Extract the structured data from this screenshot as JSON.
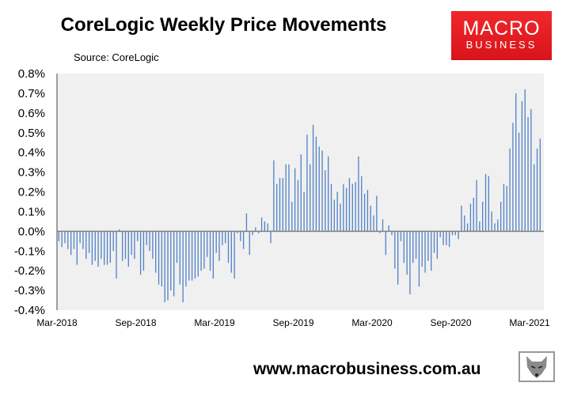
{
  "header": {
    "title": "CoreLogic Weekly Price Movements",
    "source": "Source: CoreLogic"
  },
  "logo": {
    "line1": "MACRO",
    "line2": "BUSINESS",
    "color": "#e81f25"
  },
  "footer": {
    "url": "www.macrobusiness.com.au",
    "emblem": "wolf-head-icon"
  },
  "chart_data": {
    "type": "bar",
    "title": "CoreLogic Weekly Price Movements",
    "xlabel": "",
    "ylabel": "",
    "ylim": [
      -0.4,
      0.8
    ],
    "y_unit": "%",
    "y_ticks": [
      "0.8%",
      "0.7%",
      "0.6%",
      "0.5%",
      "0.4%",
      "0.3%",
      "0.2%",
      "0.1%",
      "0.0%",
      "-0.1%",
      "-0.2%",
      "-0.3%",
      "-0.4%"
    ],
    "x_ticks": [
      "Mar-2018",
      "Sep-2018",
      "Mar-2019",
      "Sep-2019",
      "Mar-2020",
      "Sep-2020",
      "Mar-2021"
    ],
    "x_range": [
      "Mar-2018",
      "Mar-2021"
    ],
    "frequency": "weekly",
    "grid": false,
    "bar_color": "#4f81c7",
    "plot_background": "#f0f0f0",
    "values": [
      -0.05,
      -0.08,
      -0.06,
      -0.09,
      -0.12,
      -0.09,
      -0.17,
      -0.06,
      -0.09,
      -0.14,
      -0.11,
      -0.17,
      -0.15,
      -0.18,
      -0.14,
      -0.17,
      -0.17,
      -0.16,
      -0.1,
      -0.24,
      0.01,
      -0.15,
      -0.14,
      -0.18,
      -0.12,
      -0.14,
      -0.05,
      -0.22,
      -0.2,
      -0.07,
      -0.1,
      -0.14,
      -0.21,
      -0.27,
      -0.28,
      -0.36,
      -0.35,
      -0.3,
      -0.33,
      -0.16,
      -0.27,
      -0.36,
      -0.28,
      -0.25,
      -0.25,
      -0.24,
      -0.23,
      -0.2,
      -0.19,
      -0.13,
      -0.2,
      -0.24,
      -0.11,
      -0.15,
      -0.07,
      -0.06,
      -0.16,
      -0.21,
      -0.24,
      -0.01,
      -0.05,
      -0.09,
      0.09,
      -0.12,
      -0.02,
      0.02,
      -0.01,
      0.07,
      0.05,
      0.04,
      -0.06,
      0.36,
      0.24,
      0.27,
      0.27,
      0.34,
      0.34,
      0.15,
      0.32,
      0.26,
      0.39,
      0.2,
      0.49,
      0.34,
      0.54,
      0.48,
      0.43,
      0.41,
      0.31,
      0.38,
      0.24,
      0.16,
      0.2,
      0.14,
      0.24,
      0.22,
      0.27,
      0.24,
      0.25,
      0.38,
      0.28,
      0.19,
      0.21,
      0.13,
      0.08,
      0.18,
      -0.01,
      0.06,
      -0.12,
      0.03,
      -0.02,
      -0.19,
      -0.27,
      -0.05,
      -0.16,
      -0.22,
      -0.32,
      -0.16,
      -0.14,
      -0.28,
      -0.18,
      -0.21,
      -0.15,
      -0.2,
      -0.11,
      -0.14,
      -0.03,
      -0.07,
      -0.07,
      -0.08,
      -0.02,
      -0.02,
      -0.04,
      0.13,
      0.08,
      0.04,
      0.14,
      0.17,
      0.26,
      0.05,
      0.15,
      0.29,
      0.28,
      0.1,
      0.04,
      0.06,
      0.15,
      0.24,
      0.23,
      0.42,
      0.55,
      0.7,
      0.5,
      0.66,
      0.72,
      0.58,
      0.62,
      0.34,
      0.42,
      0.47
    ]
  }
}
